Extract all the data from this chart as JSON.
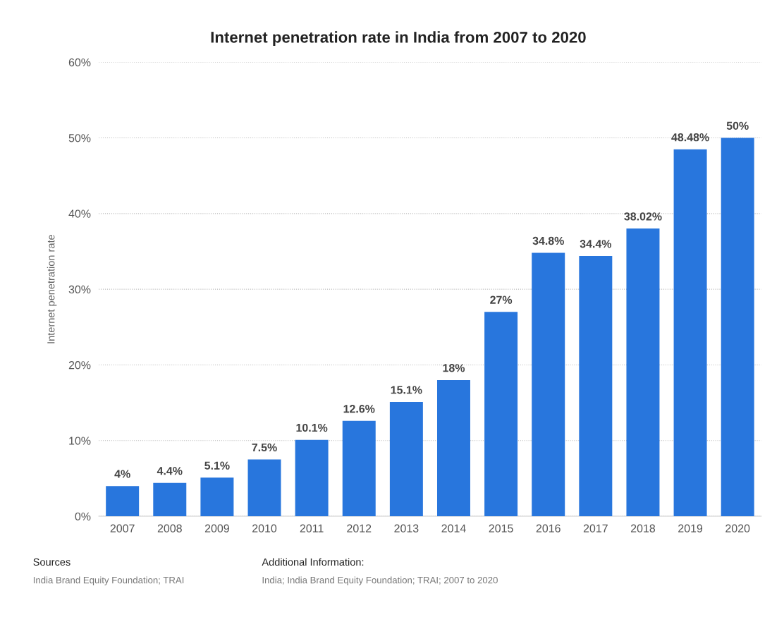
{
  "chart_data": {
    "type": "bar",
    "title": "Internet penetration rate in India from 2007 to 2020",
    "ylabel": "Internet penetration rate",
    "categories": [
      "2007",
      "2008",
      "2009",
      "2010",
      "2011",
      "2012",
      "2013",
      "2014",
      "2015",
      "2016",
      "2017",
      "2018",
      "2019",
      "2020"
    ],
    "values": [
      4,
      4.4,
      5.1,
      7.5,
      10.1,
      12.6,
      15.1,
      18,
      27,
      34.8,
      34.4,
      38.02,
      48.48,
      50
    ],
    "value_labels": [
      "4%",
      "4.4%",
      "5.1%",
      "7.5%",
      "10.1%",
      "12.6%",
      "15.1%",
      "18%",
      "27%",
      "34.8%",
      "34.4%",
      "38.02%",
      "48.48%",
      "50%"
    ],
    "color": "#2876dd",
    "ylim": [
      0,
      60
    ],
    "yticks": [
      {
        "value": 0,
        "label": "0%"
      },
      {
        "value": 10,
        "label": "10%"
      },
      {
        "value": 20,
        "label": "20%"
      },
      {
        "value": 30,
        "label": "30%"
      },
      {
        "value": 40,
        "label": "40%"
      },
      {
        "value": 50,
        "label": "50%"
      },
      {
        "value": 60,
        "label": "60%"
      }
    ],
    "grid": "y",
    "legend": false,
    "annotations": [
      "Sources\nIndia Brand Equity Foundation; TRAI",
      "Additional Information:\nIndia; India Brand Equity Foundation; TRAI; 2007 to 2020"
    ]
  }
}
